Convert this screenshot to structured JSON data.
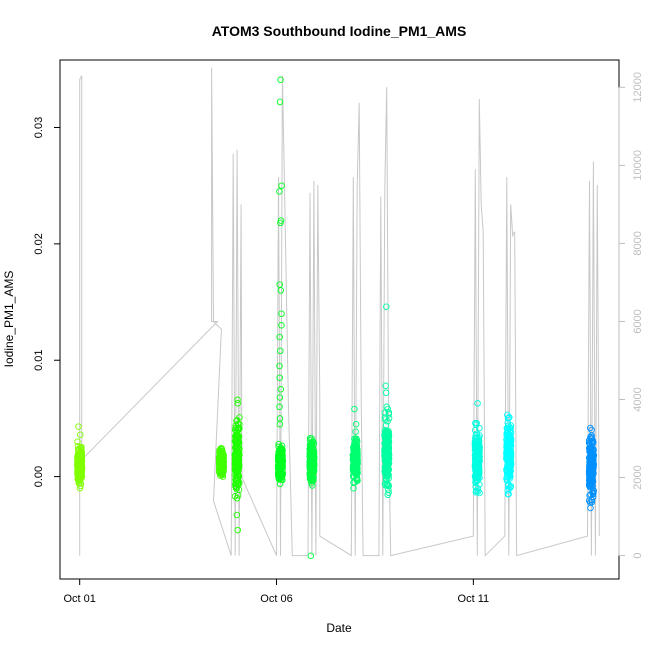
{
  "chart_data": {
    "type": "scatter",
    "title": "ATOM3 Southbound Iodine_PM1_AMS",
    "xlabel": "Date",
    "ylabel": "Iodine_PM1_AMS",
    "x_ticks": [
      "Oct 01",
      "Oct 06",
      "Oct 11"
    ],
    "y_ticks": [
      "0.00",
      "0.01",
      "0.02",
      "0.03"
    ],
    "y2_ticks": [
      "0",
      "2000",
      "4000",
      "6000",
      "8000",
      "10000",
      "12000"
    ],
    "grid": false,
    "colors": {
      "line_series": "#c8c8c8",
      "right_axis": "#bebebe",
      "point_gradient": [
        "#80ff00",
        "#00ff00",
        "#00ffa0",
        "#00ffff",
        "#0080ff"
      ]
    },
    "series": [
      {
        "kind": "points",
        "axis": "left",
        "note": "clusters of measured values",
        "clusters": [
          {
            "day": 1.0,
            "color": "#80ff00",
            "min": -0.001,
            "max": 0.003,
            "outliers": [
              0.0043,
              0.0036
            ]
          },
          {
            "day": 4.6,
            "color": "#40ff00",
            "min": -0.0003,
            "max": 0.0025,
            "outliers": []
          },
          {
            "day": 5.0,
            "color": "#20ff00",
            "min": -0.002,
            "max": 0.0055,
            "outliers": [
              -0.0033,
              -0.0046,
              0.0066,
              0.0063,
              0.0035
            ]
          },
          {
            "day": 6.1,
            "color": "#00ff20",
            "min": -0.0007,
            "max": 0.003,
            "outliers": [
              0.0341,
              0.0322,
              0.025,
              0.0245,
              0.022,
              0.0218,
              0.0165,
              0.016,
              0.014,
              0.013,
              0.012,
              0.0108,
              0.0095,
              0.0085,
              0.0075,
              0.0068,
              0.006,
              0.005,
              0.0045
            ]
          },
          {
            "day": 6.9,
            "color": "#00ff40",
            "min": -0.001,
            "max": 0.0035,
            "outliers": [
              -0.0068
            ]
          },
          {
            "day": 8.0,
            "color": "#00ff70",
            "min": -0.001,
            "max": 0.004,
            "outliers": [
              0.0058,
              0.0045
            ]
          },
          {
            "day": 8.8,
            "color": "#00ffa0",
            "min": -0.0018,
            "max": 0.0055,
            "outliers": [
              0.0146,
              0.0078,
              0.0072,
              0.006,
              0.0058
            ]
          },
          {
            "day": 11.1,
            "color": "#00ffe0",
            "min": -0.0018,
            "max": 0.0047,
            "outliers": [
              0.0063,
              0.0046
            ]
          },
          {
            "day": 11.9,
            "color": "#00ffff",
            "min": -0.0015,
            "max": 0.0053,
            "outliers": [
              0.0051,
              0.005
            ]
          },
          {
            "day": 14.0,
            "color": "#0090ff",
            "min": -0.0025,
            "max": 0.0042,
            "outliers": [
              -0.0027,
              -0.0022,
              0.004
            ]
          }
        ]
      },
      {
        "kind": "line",
        "axis": "right",
        "note": "altitude-like trace",
        "path": [
          [
            1.0,
            0
          ],
          [
            1.0,
            12200
          ],
          [
            1.05,
            12300
          ],
          [
            1.05,
            2000
          ],
          [
            1.0,
            2400
          ],
          [
            4.5,
            6000
          ],
          [
            4.35,
            6000
          ],
          [
            4.35,
            12500
          ],
          [
            4.4,
            6000
          ],
          [
            4.6,
            5800
          ],
          [
            4.4,
            1400
          ],
          [
            4.85,
            0
          ],
          [
            4.9,
            10300
          ],
          [
            4.95,
            0
          ],
          [
            5.0,
            10400
          ],
          [
            5.05,
            0
          ],
          [
            5.1,
            9000
          ],
          [
            5.12,
            2000
          ],
          [
            6.0,
            0
          ],
          [
            6.05,
            9700
          ],
          [
            6.1,
            0
          ],
          [
            6.15,
            12300
          ],
          [
            6.2,
            9600
          ],
          [
            6.3,
            4000
          ],
          [
            6.4,
            0
          ],
          [
            6.8,
            0
          ],
          [
            6.85,
            9300
          ],
          [
            6.9,
            0
          ],
          [
            6.95,
            9600
          ],
          [
            7.0,
            0
          ],
          [
            7.05,
            9500
          ],
          [
            7.1,
            4000
          ],
          [
            7.1,
            500
          ],
          [
            7.9,
            0
          ],
          [
            7.95,
            9700
          ],
          [
            8.0,
            0
          ],
          [
            8.05,
            9500
          ],
          [
            8.1,
            11600
          ],
          [
            8.15,
            4000
          ],
          [
            8.2,
            0
          ],
          [
            8.6,
            0
          ],
          [
            8.65,
            9200
          ],
          [
            8.7,
            0
          ],
          [
            8.75,
            9400
          ],
          [
            8.8,
            12000
          ],
          [
            8.85,
            3000
          ],
          [
            8.9,
            0
          ],
          [
            11.0,
            500
          ],
          [
            11.05,
            9900
          ],
          [
            11.1,
            0
          ],
          [
            11.15,
            11700
          ],
          [
            11.2,
            9000
          ],
          [
            11.25,
            8300
          ],
          [
            11.3,
            0
          ],
          [
            11.8,
            500
          ],
          [
            11.85,
            9700
          ],
          [
            11.9,
            0
          ],
          [
            11.95,
            9000
          ],
          [
            12.0,
            8200
          ],
          [
            12.05,
            8300
          ],
          [
            12.1,
            0
          ],
          [
            13.9,
            500
          ],
          [
            13.95,
            9600
          ],
          [
            14.0,
            0
          ],
          [
            14.05,
            10100
          ],
          [
            14.1,
            0
          ],
          [
            14.15,
            9500
          ],
          [
            14.2,
            500
          ]
        ]
      }
    ],
    "x_range": [
      0.5,
      14.7
    ],
    "y_range": [
      -0.0088,
      0.0358
    ],
    "y2_range": [
      -600,
      12700
    ]
  }
}
